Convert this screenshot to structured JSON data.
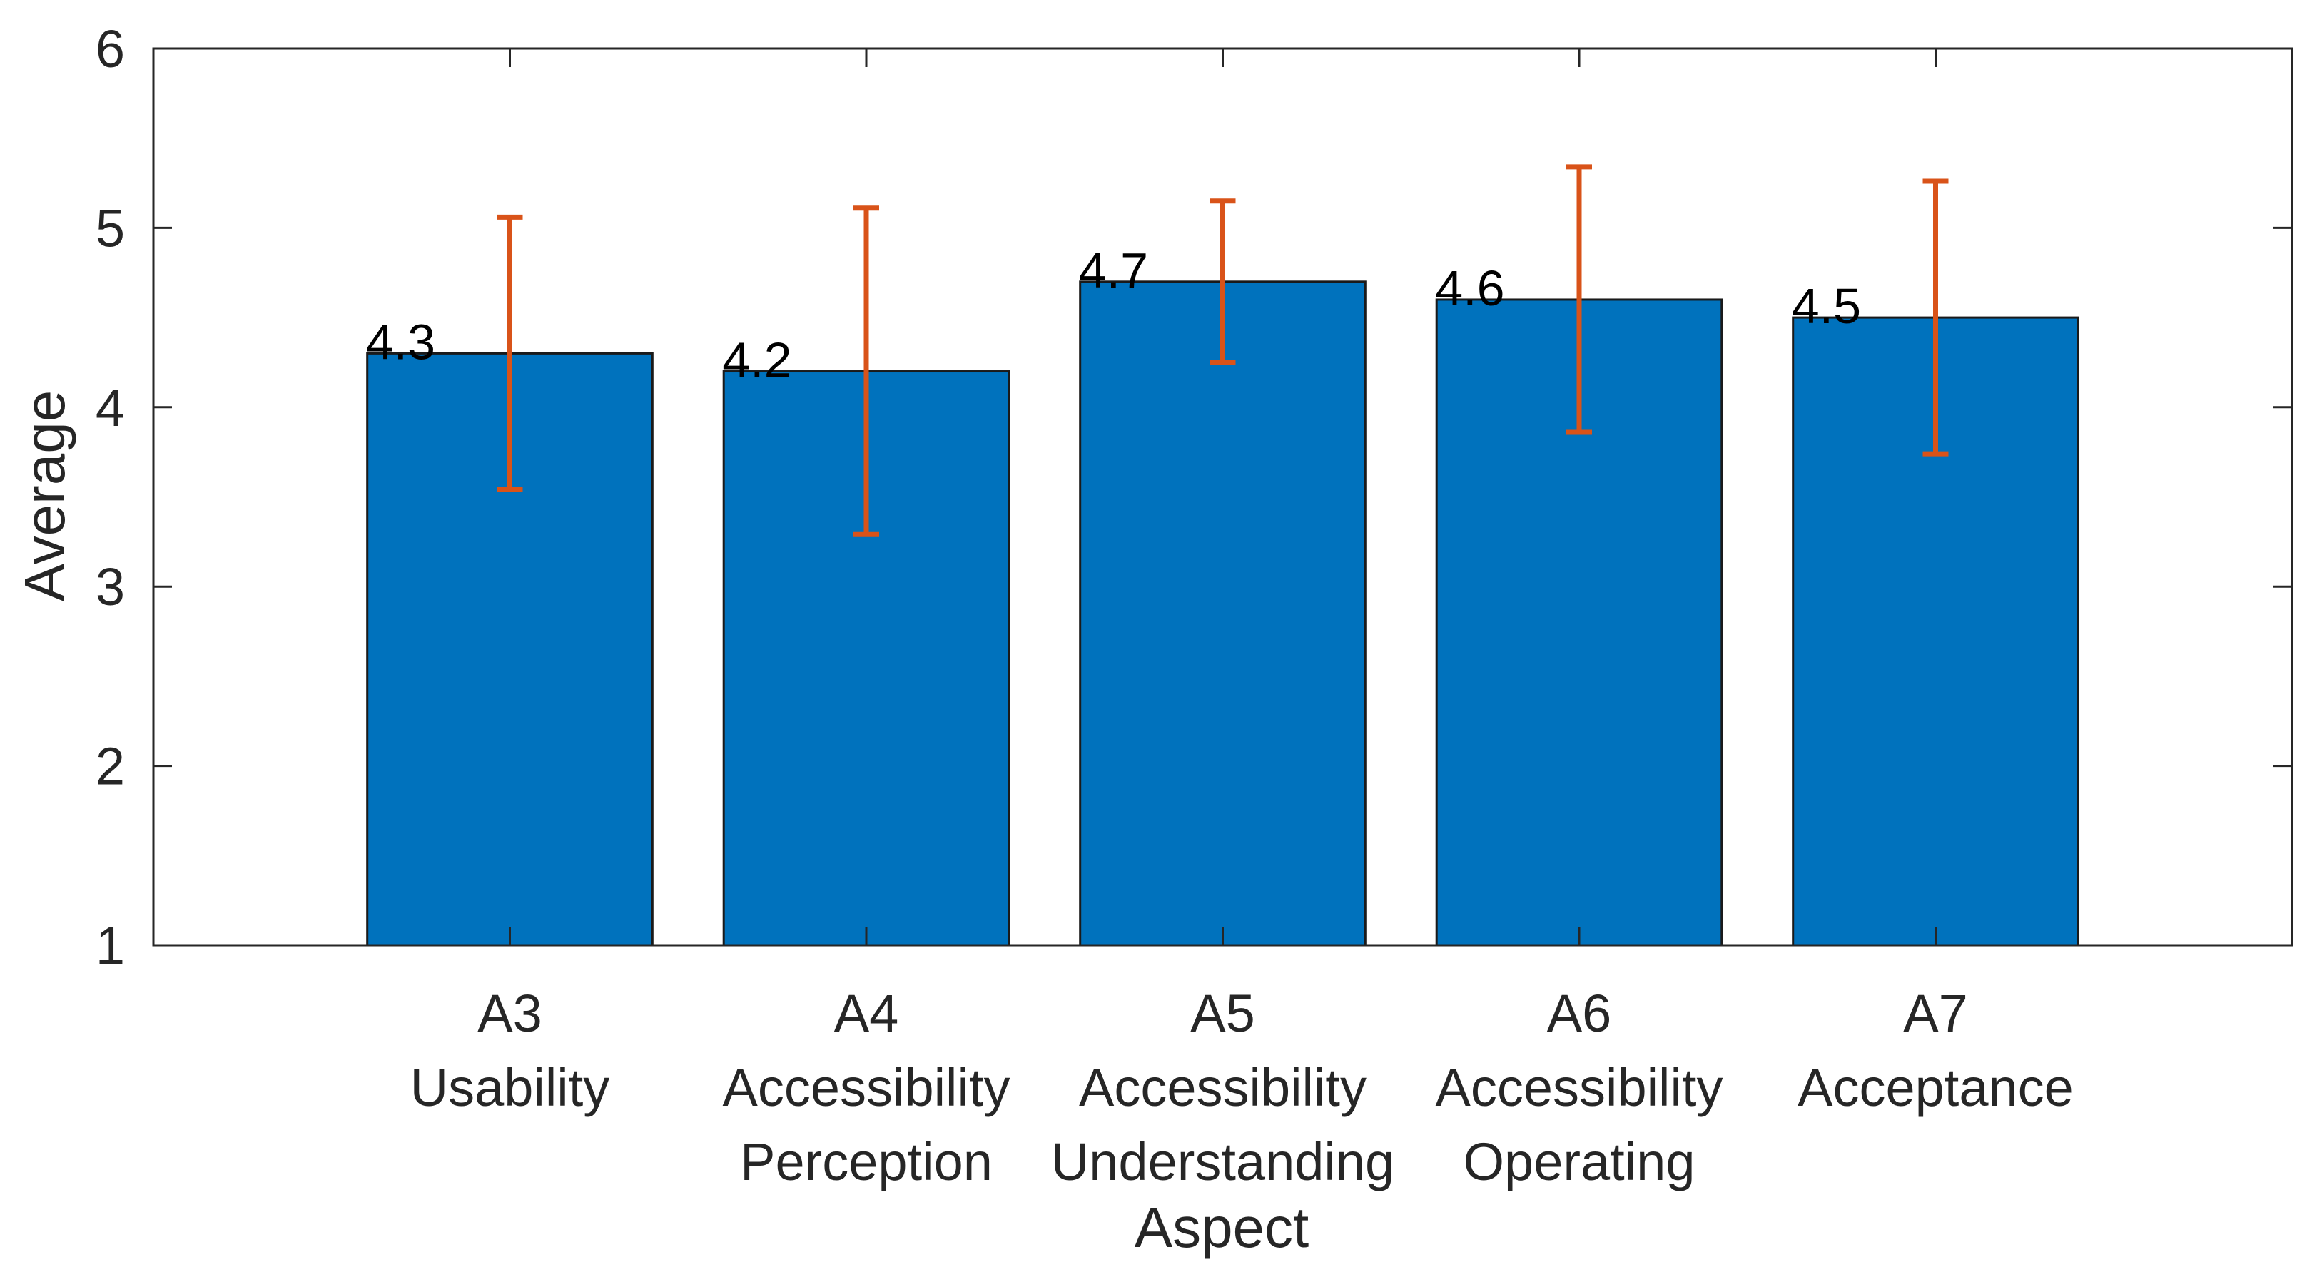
{
  "chart_data": {
    "type": "bar",
    "title": "",
    "xlabel": "Aspect",
    "ylabel": "Average",
    "ylim": [
      1,
      6
    ],
    "yticks": [
      1,
      2,
      3,
      4,
      5,
      6
    ],
    "grid": false,
    "categories": [
      {
        "code": "A3",
        "lines": [
          "A3",
          "Usability"
        ]
      },
      {
        "code": "A4",
        "lines": [
          "A4",
          "Accessibility",
          "Perception"
        ]
      },
      {
        "code": "A5",
        "lines": [
          "A5",
          "Accessibility",
          "Understanding"
        ]
      },
      {
        "code": "A6",
        "lines": [
          "A6",
          "Accessibility",
          "Operating"
        ]
      },
      {
        "code": "A7",
        "lines": [
          "A7",
          "Acceptance"
        ]
      }
    ],
    "series": [
      {
        "name": "Average",
        "values": [
          4.3,
          4.2,
          4.7,
          4.6,
          4.5
        ],
        "labels": [
          "4.3",
          "4.2",
          "4.7",
          "4.6",
          "4.5"
        ],
        "error_low": [
          3.54,
          3.29,
          4.25,
          3.86,
          3.74
        ],
        "error_high": [
          5.06,
          5.11,
          5.15,
          5.34,
          5.26
        ]
      }
    ],
    "colors": {
      "bar": "#0072bd",
      "error": "#d95319",
      "axis": "#262626"
    }
  }
}
